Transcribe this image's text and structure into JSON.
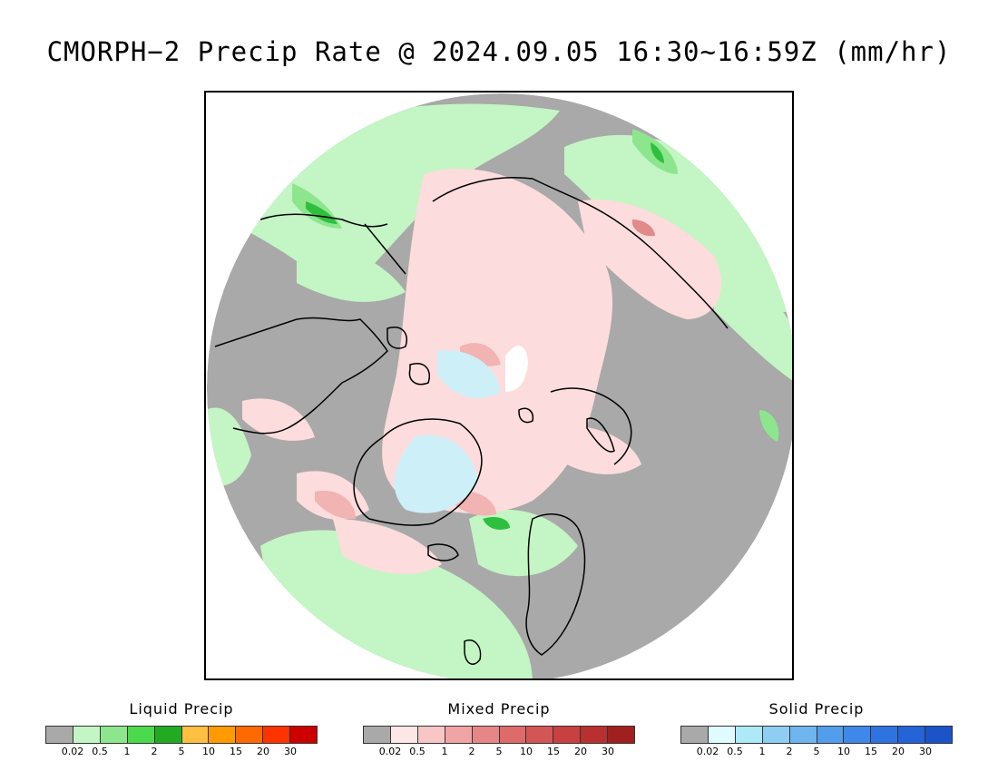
{
  "title": "CMORPH−2 Precip Rate @ 2024.09.05 16:30~16:59Z (mm/hr)",
  "map": {
    "projection": "polar-stereographic-north",
    "colors": {
      "no_precip": "#a9a9a9",
      "liquid_light": "#c4f5c4",
      "liquid_mid": "#8de68d",
      "liquid_heavy": "#2fbf3f",
      "mixed_light": "#fcdcdc",
      "mixed_mid": "#f2b3b3",
      "mixed_heavy": "#e08a8a",
      "solid_light": "#cdeff8",
      "solid_white": "#ffffff",
      "coastline": "#000000"
    }
  },
  "legends": [
    {
      "title": "Liquid Precip",
      "colors": [
        "#a9a9a9",
        "#c4f5c4",
        "#8de68d",
        "#4cd94c",
        "#22aa22",
        "#ffbf40",
        "#ff9a00",
        "#ff6a00",
        "#ff3300",
        "#cc0000"
      ],
      "ticks": [
        "0.02",
        "0.5",
        "1",
        "2",
        "5",
        "10",
        "15",
        "20",
        "30"
      ]
    },
    {
      "title": "Mixed Precip",
      "colors": [
        "#a9a9a9",
        "#fde6e6",
        "#f8c6c6",
        "#f0a4a4",
        "#e68686",
        "#de6a6a",
        "#d45555",
        "#c84040",
        "#b83030",
        "#a02020"
      ],
      "ticks": [
        "0.02",
        "0.5",
        "1",
        "2",
        "5",
        "10",
        "15",
        "20",
        "30"
      ]
    },
    {
      "title": "Solid Precip",
      "colors": [
        "#a9a9a9",
        "#e0fbff",
        "#aee9f7",
        "#8fcdf2",
        "#6fb5ef",
        "#539ded",
        "#3f87e8",
        "#2f73e0",
        "#2563d8",
        "#1b53c8"
      ],
      "ticks": [
        "0.02",
        "0.5",
        "1",
        "2",
        "5",
        "10",
        "15",
        "20",
        "30"
      ]
    }
  ]
}
